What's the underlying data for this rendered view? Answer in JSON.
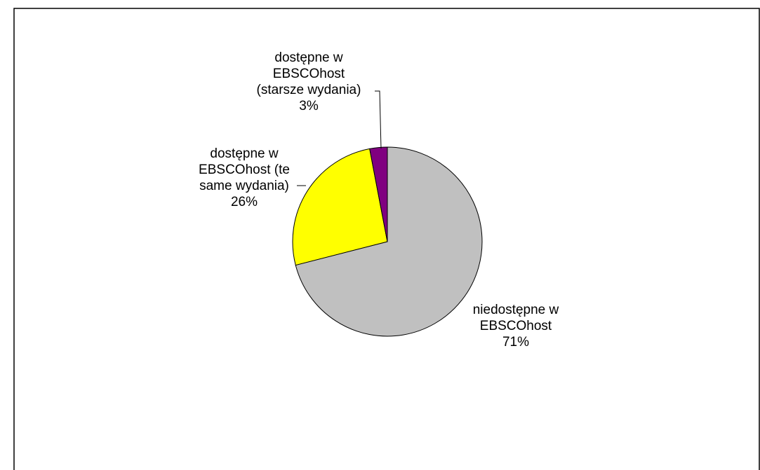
{
  "chart_data": {
    "type": "pie",
    "title": "",
    "start_angle_deg": 0,
    "direction": "clockwise",
    "slices": [
      {
        "label_lines": [
          "niedostępne w",
          "EBSCOhost",
          "71%"
        ],
        "value": 71,
        "color": "#c0c0c0"
      },
      {
        "label_lines": [
          "dostępne w",
          "EBSCOhost (te",
          "same wydania)",
          "26%"
        ],
        "value": 26,
        "color": "#ffff00"
      },
      {
        "label_lines": [
          "dostępne w",
          "EBSCOhost",
          "(starsze wydania)",
          "3%"
        ],
        "value": 3,
        "color": "#800080"
      }
    ],
    "legend": "none"
  }
}
